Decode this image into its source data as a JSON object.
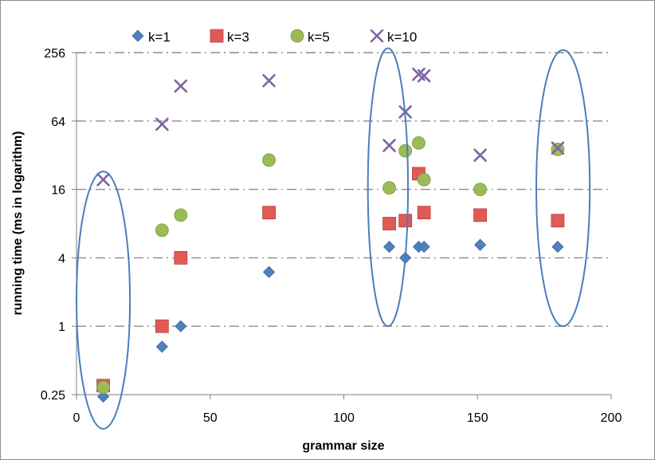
{
  "chart_data": {
    "type": "scatter",
    "title": "",
    "xlabel": "grammar size",
    "ylabel": "running time (ms in logarithm)",
    "xlim": [
      0,
      200
    ],
    "ylim": [
      0.25,
      256
    ],
    "yscale": "log2",
    "x_ticks": [
      0,
      50,
      100,
      150,
      200
    ],
    "y_ticks": [
      0.25,
      1,
      4,
      16,
      64,
      256
    ],
    "x_tick_labels": [
      "0",
      "50",
      "100",
      "150",
      "200"
    ],
    "y_tick_labels": [
      "0.25",
      "1",
      "4",
      "16",
      "64",
      "256"
    ],
    "grid": "horizontal dash-dot",
    "legend_position": "top",
    "series": [
      {
        "name": "k=1",
        "marker": "diamond",
        "color": "#4f81bd",
        "points": [
          [
            10,
            0.24
          ],
          [
            32,
            0.66
          ],
          [
            39,
            1.0
          ],
          [
            72,
            3.0
          ],
          [
            117,
            5.0
          ],
          [
            123,
            4.0
          ],
          [
            128,
            5.0
          ],
          [
            130,
            5.0
          ],
          [
            151,
            5.2
          ],
          [
            180,
            5.0
          ]
        ]
      },
      {
        "name": "k=3",
        "marker": "square",
        "color": "#e05a56",
        "points": [
          [
            10,
            0.3
          ],
          [
            32,
            1.0
          ],
          [
            39,
            4.0
          ],
          [
            72,
            10.0
          ],
          [
            117,
            8.0
          ],
          [
            123,
            8.5
          ],
          [
            128,
            22.0
          ],
          [
            130,
            10.0
          ],
          [
            151,
            9.5
          ],
          [
            180,
            8.5
          ]
        ]
      },
      {
        "name": "k=5",
        "marker": "circle",
        "color": "#9bbb59",
        "points": [
          [
            10,
            0.29
          ],
          [
            32,
            7.0
          ],
          [
            39,
            9.5
          ],
          [
            72,
            29.0
          ],
          [
            117,
            16.5
          ],
          [
            123,
            35.0
          ],
          [
            128,
            41.0
          ],
          [
            130,
            19.5
          ],
          [
            151,
            16.0
          ],
          [
            180,
            36.0
          ]
        ]
      },
      {
        "name": "k=10",
        "marker": "x",
        "color": "#8064a2",
        "points": [
          [
            10,
            19.5
          ],
          [
            32,
            60.0
          ],
          [
            39,
            130.0
          ],
          [
            72,
            145.0
          ],
          [
            117,
            39.0
          ],
          [
            123,
            77.0
          ],
          [
            128,
            165.0
          ],
          [
            130,
            160.0
          ],
          [
            151,
            32.0
          ],
          [
            180,
            37.0
          ]
        ]
      }
    ],
    "annotations": [
      {
        "shape": "ellipse",
        "label": "",
        "x_range": [
          0,
          20
        ],
        "y_range": [
          0.125,
          23.0
        ]
      },
      {
        "shape": "ellipse",
        "label": "",
        "x_range": [
          109,
          124
        ],
        "y_range": [
          1.0,
          280.0
        ]
      },
      {
        "shape": "ellipse",
        "label": "",
        "x_range": [
          172,
          192
        ],
        "y_range": [
          1.0,
          270.0
        ]
      }
    ]
  }
}
